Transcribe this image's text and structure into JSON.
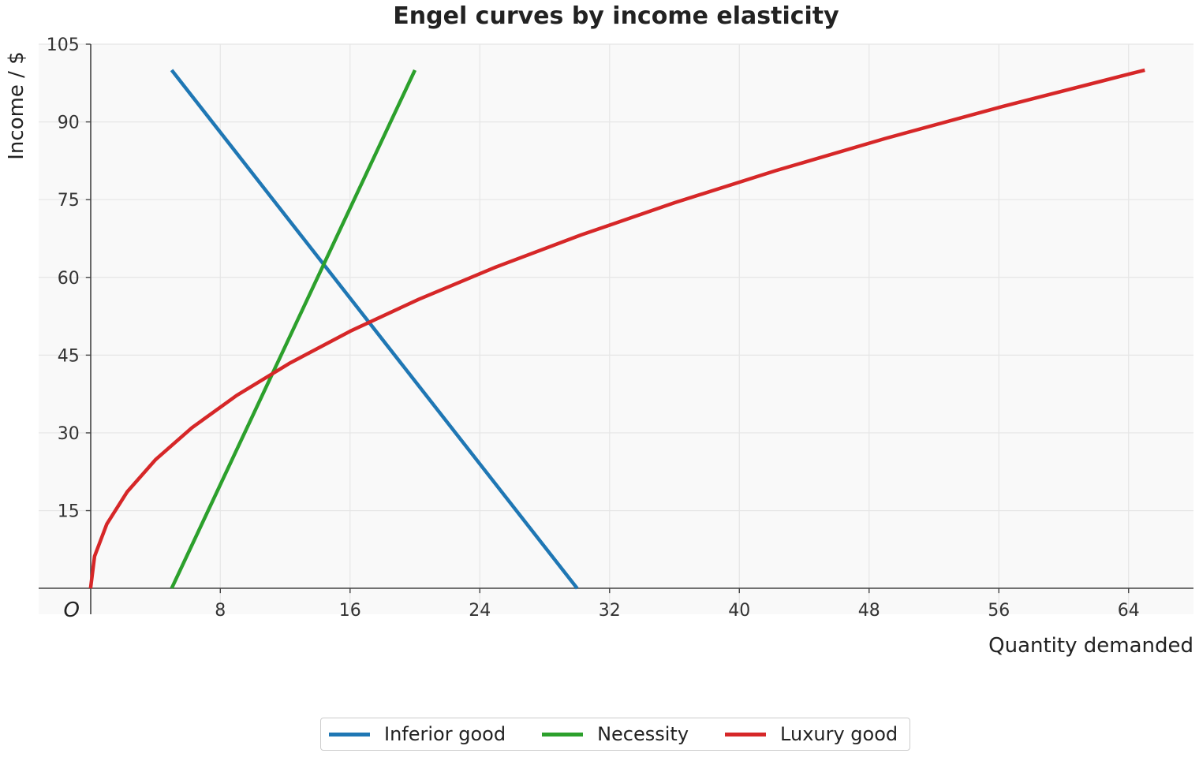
{
  "chart_data": {
    "type": "line",
    "title": "Engel curves by income elasticity",
    "xlabel": "Quantity demanded",
    "ylabel": "Income / $",
    "origin_label": "O",
    "xlim": [
      -3.2,
      68
    ],
    "ylim": [
      -5,
      105
    ],
    "xticks": [
      8,
      16,
      24,
      32,
      40,
      48,
      56,
      64
    ],
    "yticks": [
      15,
      30,
      45,
      60,
      75,
      90,
      105
    ],
    "grid": true,
    "plot_background": "#f9f9f9",
    "legend_position": "bottom-center",
    "series": [
      {
        "name": "Inferior good",
        "color": "#1f77b4",
        "x": [
          5,
          30
        ],
        "y": [
          100,
          0
        ]
      },
      {
        "name": "Necessity",
        "color": "#2ca02c",
        "x": [
          5,
          20
        ],
        "y": [
          0,
          100
        ]
      },
      {
        "name": "Luxury good",
        "color": "#d62728",
        "x": [
          0,
          0.25,
          1,
          2.25,
          4,
          6.25,
          9,
          12.25,
          16,
          20.25,
          25,
          30.25,
          36,
          42.25,
          49,
          56.25,
          64,
          65
        ],
        "y": [
          0,
          6.2,
          12.4,
          18.6,
          24.8,
          31,
          37.2,
          43.4,
          49.6,
          55.8,
          62,
          68.2,
          74.4,
          80.6,
          86.8,
          93,
          99.2,
          100
        ]
      }
    ]
  }
}
